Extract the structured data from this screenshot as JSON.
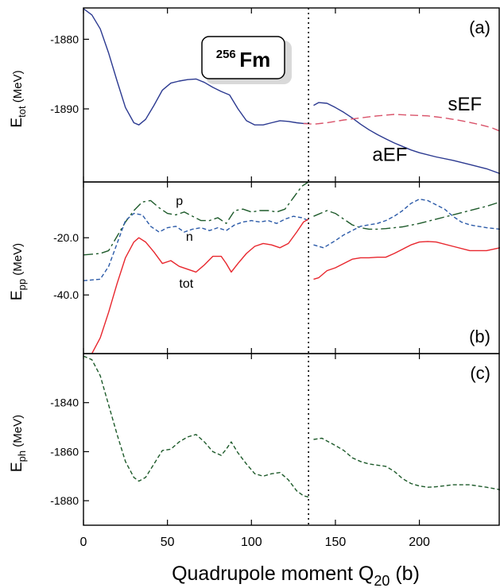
{
  "chart_data": {
    "type": "line",
    "xlabel": "Quadrupole moment Q",
    "xlabel_sub": "20",
    "xlabel_unit": " (b)",
    "xlim": [
      0,
      248
    ],
    "xticks": [
      "0",
      "50",
      "100",
      "150",
      "200"
    ],
    "xtick_values": [
      0,
      50,
      100,
      150,
      200
    ],
    "label_box": {
      "superscript": "256",
      "text": "Fm"
    },
    "dotted_divider_x": 134,
    "panels": [
      {
        "letter": "(a)",
        "ylabel_main": "E",
        "ylabel_sub": "tot",
        "ylabel_unit": "  (MeV)",
        "ylim": [
          -1900.5,
          -1875.5
        ],
        "ytick_values": [
          -1880,
          -1890
        ],
        "yticks": [
          "-1880",
          "-1890"
        ],
        "annotations": [
          {
            "text": "sEF",
            "x": 217,
            "y": -1890.2
          },
          {
            "text": "aEF",
            "x": 172,
            "y": -1897.5
          }
        ],
        "series": [
          {
            "color": "#2b3990",
            "dash": "solid",
            "x": [
              0,
              5,
              10,
              15,
              20,
              25,
              30,
              33,
              37,
              42,
              47,
              52,
              57,
              62,
              67,
              72,
              77,
              82,
              87,
              92,
              97,
              102,
              107,
              112,
              117,
              122,
              127,
              131,
              134
            ],
            "y": [
              -1875.6,
              -1876.5,
              -1878.5,
              -1882.0,
              -1886.0,
              -1889.8,
              -1892.0,
              -1892.3,
              -1891.5,
              -1889.5,
              -1887.3,
              -1886.3,
              -1886.0,
              -1885.8,
              -1885.7,
              -1886.2,
              -1886.9,
              -1887.5,
              -1888.0,
              -1890.0,
              -1891.7,
              -1892.3,
              -1892.3,
              -1892.0,
              -1891.7,
              -1891.8,
              -1892.0,
              -1892.1,
              -1892.1
            ]
          },
          {
            "color": "#2b3990",
            "dash": "solid",
            "x": [
              137,
              140,
              145,
              150,
              155,
              160,
              165,
              170,
              175,
              180,
              185,
              190,
              195,
              200,
              210,
              220,
              230,
              240,
              248
            ],
            "y": [
              -1889.5,
              -1889.1,
              -1889.2,
              -1889.8,
              -1890.5,
              -1891.3,
              -1892.2,
              -1893.0,
              -1893.7,
              -1894.3,
              -1894.9,
              -1895.4,
              -1895.9,
              -1896.3,
              -1896.9,
              -1897.4,
              -1898.0,
              -1898.6,
              -1899.3
            ]
          },
          {
            "color": "#d9536a",
            "dash": "long",
            "x": [
              131,
              137,
              145,
              155,
              165,
              175,
              185,
              195,
              205,
              215,
              225,
              235,
              243,
              248
            ],
            "y": [
              -1892.1,
              -1892.2,
              -1892.0,
              -1891.6,
              -1891.3,
              -1891.0,
              -1890.8,
              -1890.9,
              -1891.0,
              -1891.3,
              -1891.7,
              -1892.2,
              -1892.7,
              -1893.2
            ]
          }
        ]
      },
      {
        "letter": "(b)",
        "ylabel_main": "E",
        "ylabel_sub": "pp",
        "ylabel_unit": "  (MeV)",
        "ylim": [
          -60.5,
          -0.5
        ],
        "ytick_values": [
          -20,
          -40
        ],
        "yticks": [
          "-20.0",
          "-40.0"
        ],
        "annotations": [
          {
            "text": "p",
            "x": 55,
            "y": -8.5
          },
          {
            "text": "n",
            "x": 61,
            "y": -21.0
          },
          {
            "text": "tot",
            "x": 57,
            "y": -37.5
          }
        ],
        "series": [
          {
            "color": "#1d5a2a",
            "dash": "dashdot",
            "x": [
              0,
              10,
              15,
              20,
              25,
              30,
              35,
              40,
              45,
              50,
              55,
              60,
              65,
              70,
              75,
              80,
              85,
              90,
              95,
              100,
              105,
              110,
              115,
              120,
              125,
              130,
              134
            ],
            "y": [
              -26.0,
              -25.5,
              -24.5,
              -19.5,
              -14.5,
              -10.5,
              -7.5,
              -7.0,
              -9.5,
              -11.5,
              -12.0,
              -11.0,
              -12.5,
              -14.0,
              -14.0,
              -13.0,
              -15.0,
              -10.5,
              -10.0,
              -11.0,
              -10.5,
              -10.5,
              -11.0,
              -10.0,
              -6.0,
              -2.0,
              -0.5
            ]
          },
          {
            "color": "#1d5a2a",
            "dash": "dashdot",
            "x": [
              137,
              145,
              150,
              155,
              160,
              165,
              170,
              175,
              180,
              190,
              200,
              210,
              220,
              230,
              240,
              248
            ],
            "y": [
              -12.5,
              -10.5,
              -11.5,
              -13.5,
              -15.5,
              -16.5,
              -17.0,
              -17.0,
              -16.8,
              -16.2,
              -15.0,
              -13.5,
              -12.0,
              -10.5,
              -9.0,
              -7.5
            ]
          },
          {
            "color": "#2b5aa8",
            "dash": "short",
            "x": [
              0,
              10,
              15,
              20,
              25,
              30,
              35,
              40,
              45,
              50,
              55,
              60,
              65,
              70,
              75,
              80,
              85,
              90,
              95,
              100,
              105,
              110,
              115,
              120,
              125,
              130,
              134
            ],
            "y": [
              -35.0,
              -34.5,
              -30.0,
              -22.0,
              -14.0,
              -11.5,
              -12.0,
              -16.0,
              -18.0,
              -16.5,
              -16.0,
              -18.0,
              -17.0,
              -16.5,
              -17.5,
              -16.5,
              -17.5,
              -15.5,
              -14.5,
              -14.0,
              -14.5,
              -14.0,
              -15.0,
              -13.5,
              -12.5,
              -13.0,
              -14.0
            ]
          },
          {
            "color": "#2b5aa8",
            "dash": "short",
            "x": [
              137,
              143,
              150,
              155,
              160,
              165,
              170,
              175,
              180,
              185,
              190,
              195,
              200,
              205,
              210,
              215,
              220,
              225,
              230,
              235,
              240,
              248
            ],
            "y": [
              -22.5,
              -23.5,
              -21.0,
              -19.0,
              -17.5,
              -16.0,
              -15.5,
              -15.0,
              -14.0,
              -12.5,
              -10.5,
              -8.0,
              -6.5,
              -7.0,
              -8.5,
              -10.0,
              -12.5,
              -14.5,
              -15.5,
              -16.0,
              -16.5,
              -17.0
            ]
          },
          {
            "color": "#e8262d",
            "dash": "solid",
            "x": [
              5,
              10,
              15,
              20,
              25,
              30,
              33,
              37,
              42,
              47,
              52,
              57,
              62,
              67,
              72,
              77,
              82,
              85,
              88,
              92,
              97,
              102,
              107,
              112,
              117,
              122,
              127,
              131,
              134
            ],
            "y": [
              -60.5,
              -55.0,
              -46.0,
              -36.0,
              -27.0,
              -21.5,
              -20.0,
              -21.5,
              -25.0,
              -29.0,
              -28.0,
              -30.0,
              -31.0,
              -32.0,
              -29.5,
              -26.5,
              -26.5,
              -29.0,
              -32.0,
              -29.0,
              -25.5,
              -23.0,
              -22.0,
              -22.5,
              -23.5,
              -22.0,
              -18.0,
              -14.5,
              -13.5
            ]
          },
          {
            "color": "#e8262d",
            "dash": "solid",
            "x": [
              137,
              140,
              145,
              150,
              155,
              160,
              165,
              170,
              175,
              180,
              185,
              190,
              195,
              200,
              205,
              210,
              220,
              230,
              240,
              248
            ],
            "y": [
              -34.5,
              -34.0,
              -31.5,
              -30.5,
              -29.0,
              -27.5,
              -27.0,
              -27.0,
              -26.8,
              -26.8,
              -25.5,
              -24.0,
              -22.5,
              -21.5,
              -21.3,
              -21.5,
              -23.0,
              -24.5,
              -24.5,
              -23.5
            ]
          }
        ]
      },
      {
        "letter": "(c)",
        "ylabel_main": "E",
        "ylabel_sub": "ph",
        "ylabel_unit": "  (MeV)",
        "ylim": [
          -1890,
          -1820
        ],
        "ytick_values": [
          -1840,
          -1860,
          -1880
        ],
        "yticks": [
          "-1840",
          "-1860",
          "-1880"
        ],
        "annotations": [],
        "series": [
          {
            "color": "#1d5a2a",
            "dash": "short",
            "x": [
              0,
              5,
              10,
              15,
              20,
              25,
              30,
              33,
              37,
              42,
              47,
              52,
              57,
              62,
              67,
              72,
              77,
              82,
              85,
              88,
              92,
              97,
              102,
              107,
              112,
              117,
              122,
              127,
              131,
              134
            ],
            "y": [
              -1821.0,
              -1822.5,
              -1829.0,
              -1841.0,
              -1853.0,
              -1864.0,
              -1870.5,
              -1872.0,
              -1870.5,
              -1865.0,
              -1859.5,
              -1859.0,
              -1856.0,
              -1854.0,
              -1853.0,
              -1856.0,
              -1860.0,
              -1861.5,
              -1859.0,
              -1856.0,
              -1860.5,
              -1865.0,
              -1869.0,
              -1870.0,
              -1869.0,
              -1868.5,
              -1871.5,
              -1876.0,
              -1878.0,
              -1878.5
            ]
          },
          {
            "color": "#1d5a2a",
            "dash": "short",
            "x": [
              137,
              142,
              150,
              155,
              160,
              165,
              170,
              175,
              180,
              185,
              190,
              195,
              200,
              205,
              210,
              220,
              230,
              240,
              248
            ],
            "y": [
              -1855.0,
              -1854.5,
              -1857.5,
              -1859.5,
              -1862.5,
              -1864.0,
              -1865.0,
              -1865.5,
              -1866.0,
              -1868.0,
              -1871.0,
              -1873.0,
              -1874.0,
              -1874.5,
              -1874.3,
              -1873.5,
              -1873.5,
              -1874.5,
              -1875.5
            ]
          }
        ]
      }
    ]
  }
}
